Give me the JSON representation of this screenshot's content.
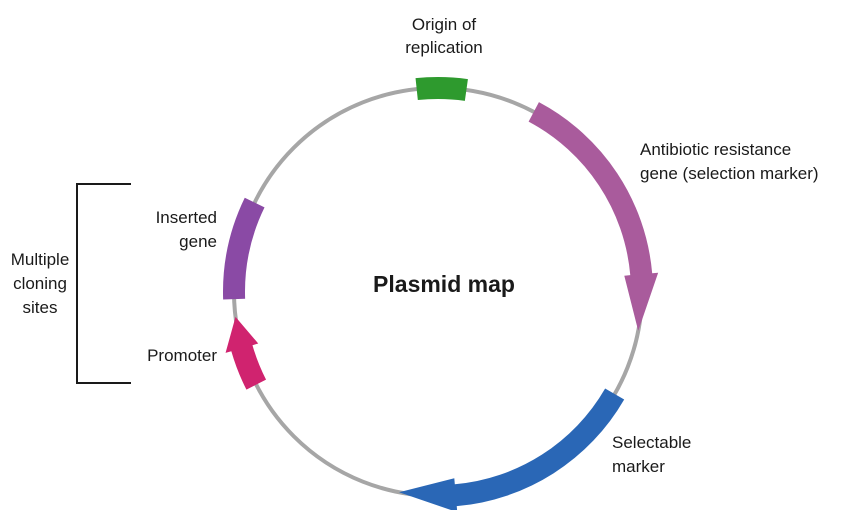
{
  "title": "Plasmid map",
  "colors": {
    "backbone": "#a6a6a6",
    "origin": "#2e9a2e",
    "antibiotic": "#a95b9c",
    "selectable": "#2a67b6",
    "promoter": "#d0236f",
    "inserted": "#8a4aa5",
    "bracket": "#1a1a1a"
  },
  "labels": {
    "origin": [
      "Origin of",
      "replication"
    ],
    "antibiotic": [
      "Antibiotic resistance",
      "gene (selection marker)"
    ],
    "selectable": [
      "Selectable",
      "marker"
    ],
    "promoter": "Promoter",
    "inserted": [
      "Inserted",
      "gene"
    ],
    "mcs": [
      "Multiple",
      "cloning",
      "sites"
    ]
  },
  "features": [
    {
      "name": "origin",
      "type": "block",
      "start_deg": 354,
      "end_deg": 8
    },
    {
      "name": "antibiotic",
      "type": "arrow",
      "start_deg": 28,
      "end_deg": 101,
      "direction": "clockwise"
    },
    {
      "name": "selectable",
      "type": "arrow",
      "start_deg": 120,
      "end_deg": 191,
      "direction": "clockwise"
    },
    {
      "name": "promoter",
      "type": "arrow",
      "start_deg": 243,
      "end_deg": 263,
      "direction": "clockwise"
    },
    {
      "name": "inserted",
      "type": "block",
      "start_deg": 268,
      "end_deg": 296
    }
  ]
}
